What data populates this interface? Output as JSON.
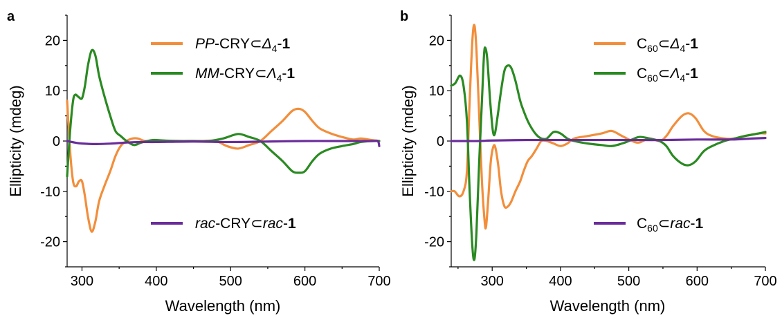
{
  "colors": {
    "orange": "#F28E3B",
    "green": "#2A8A22",
    "purple": "#6A2C9A"
  },
  "chart_data": [
    {
      "type": "line",
      "panel_label": "a",
      "xlabel": "Wavelength (nm)",
      "ylabel": "Ellipticity (mdeg)",
      "xlim": [
        280,
        700
      ],
      "ylim": [
        -25,
        25
      ],
      "xticks": [
        300,
        400,
        500,
        600,
        700
      ],
      "yticks": [
        -20,
        -10,
        0,
        10,
        20
      ],
      "grid": false,
      "legend_position": "right",
      "series": [
        {
          "name": "PP-CRY⊂Δ4-1",
          "legend": {
            "italic": "PP",
            "a": "-CRY⊂",
            "greek": "Δ",
            "sub": "4",
            "b": "-",
            "bold": "1"
          },
          "color": "#F28E3B",
          "points": [
            [
              280,
              8
            ],
            [
              284,
              -2
            ],
            [
              288,
              -8
            ],
            [
              292,
              -9
            ],
            [
              296,
              -8
            ],
            [
              300,
              -8
            ],
            [
              304,
              -11
            ],
            [
              308,
              -15
            ],
            [
              313,
              -18
            ],
            [
              318,
              -16
            ],
            [
              323,
              -12
            ],
            [
              330,
              -9
            ],
            [
              338,
              -6
            ],
            [
              345,
              -3
            ],
            [
              352,
              -1
            ],
            [
              360,
              0
            ],
            [
              368,
              0.5
            ],
            [
              375,
              0.5
            ],
            [
              385,
              0
            ],
            [
              400,
              0
            ],
            [
              420,
              0
            ],
            [
              440,
              0
            ],
            [
              460,
              0
            ],
            [
              480,
              0
            ],
            [
              495,
              -1
            ],
            [
              510,
              -1.5
            ],
            [
              525,
              -0.8
            ],
            [
              540,
              0
            ],
            [
              555,
              2
            ],
            [
              570,
              4
            ],
            [
              583,
              6
            ],
            [
              592,
              6.4
            ],
            [
              600,
              5.8
            ],
            [
              610,
              4
            ],
            [
              620,
              2.5
            ],
            [
              635,
              1.5
            ],
            [
              650,
              0.8
            ],
            [
              665,
              0.3
            ],
            [
              675,
              0.5
            ],
            [
              690,
              0.2
            ],
            [
              700,
              0
            ]
          ]
        },
        {
          "name": "MM-CRY⊂Λ4-1",
          "legend": {
            "italic": "MM",
            "a": "-CRY⊂",
            "greek": "Λ",
            "sub": "4",
            "b": "-",
            "bold": "1"
          },
          "color": "#2A8A22",
          "points": [
            [
              280,
              -7
            ],
            [
              284,
              2
            ],
            [
              288,
              8
            ],
            [
              291,
              9.2
            ],
            [
              295,
              8.8
            ],
            [
              300,
              8.5
            ],
            [
              304,
              11
            ],
            [
              308,
              15
            ],
            [
              313,
              18
            ],
            [
              318,
              17
            ],
            [
              323,
              13
            ],
            [
              330,
              9
            ],
            [
              338,
              5
            ],
            [
              345,
              2
            ],
            [
              352,
              1
            ],
            [
              360,
              0
            ],
            [
              370,
              -0.8
            ],
            [
              380,
              -0.3
            ],
            [
              395,
              0.2
            ],
            [
              410,
              0.1
            ],
            [
              430,
              0
            ],
            [
              450,
              0
            ],
            [
              470,
              0
            ],
            [
              490,
              0.5
            ],
            [
              510,
              1.4
            ],
            [
              525,
              0.8
            ],
            [
              540,
              0
            ],
            [
              555,
              -2
            ],
            [
              570,
              -4
            ],
            [
              583,
              -6
            ],
            [
              592,
              -6.3
            ],
            [
              600,
              -6
            ],
            [
              610,
              -4
            ],
            [
              620,
              -2.5
            ],
            [
              635,
              -1.5
            ],
            [
              650,
              -1
            ],
            [
              665,
              -0.6
            ],
            [
              675,
              -0.2
            ],
            [
              690,
              0
            ],
            [
              700,
              0
            ]
          ]
        },
        {
          "name": "rac-CRY⊂rac-1",
          "legend": {
            "italic": "rac",
            "a": "-CRY⊂",
            "italic2": "rac",
            "b": "-",
            "bold": "1"
          },
          "color": "#6A2C9A",
          "points": [
            [
              280,
              0
            ],
            [
              290,
              -0.3
            ],
            [
              300,
              -0.5
            ],
            [
              320,
              -0.6
            ],
            [
              340,
              -0.5
            ],
            [
              360,
              -0.3
            ],
            [
              380,
              -0.2
            ],
            [
              400,
              -0.2
            ],
            [
              450,
              -0.1
            ],
            [
              500,
              -0.2
            ],
            [
              550,
              -0.1
            ],
            [
              600,
              0
            ],
            [
              650,
              0
            ],
            [
              690,
              0
            ],
            [
              698,
              0
            ],
            [
              700,
              -1
            ]
          ]
        }
      ]
    },
    {
      "type": "line",
      "panel_label": "b",
      "xlabel": "Wavelength (nm)",
      "ylabel": "Ellipticity (mdeg)",
      "xlim": [
        240,
        700
      ],
      "ylim": [
        -25,
        25
      ],
      "xticks": [
        300,
        400,
        500,
        600,
        700
      ],
      "yticks": [
        -20,
        -10,
        0,
        10,
        20
      ],
      "grid": false,
      "legend_position": "right",
      "series": [
        {
          "name": "C60⊂Δ4-1",
          "legend": {
            "pre": "C",
            "sub1": "60",
            "a": "⊂",
            "greek": "Δ",
            "sub": "4",
            "b": "-",
            "bold": "1"
          },
          "color": "#F28E3B",
          "points": [
            [
              240,
              -10
            ],
            [
              245,
              -10
            ],
            [
              252,
              -11
            ],
            [
              258,
              -10
            ],
            [
              263,
              -6
            ],
            [
              267,
              8
            ],
            [
              271,
              20
            ],
            [
              274,
              23
            ],
            [
              277,
              18
            ],
            [
              281,
              5
            ],
            [
              285,
              -8
            ],
            [
              289,
              -16
            ],
            [
              291,
              -17
            ],
            [
              294,
              -12
            ],
            [
              298,
              -4
            ],
            [
              302,
              -1
            ],
            [
              305,
              -1.5
            ],
            [
              309,
              -5
            ],
            [
              313,
              -10
            ],
            [
              318,
              -13
            ],
            [
              323,
              -13
            ],
            [
              328,
              -12
            ],
            [
              334,
              -10
            ],
            [
              341,
              -8
            ],
            [
              346,
              -6
            ],
            [
              352,
              -4
            ],
            [
              358,
              -3
            ],
            [
              365,
              -1.5
            ],
            [
              372,
              0
            ],
            [
              380,
              0
            ],
            [
              390,
              -0.5
            ],
            [
              400,
              -1
            ],
            [
              410,
              -0.5
            ],
            [
              420,
              0.5
            ],
            [
              440,
              1
            ],
            [
              460,
              1.5
            ],
            [
              475,
              2
            ],
            [
              490,
              1
            ],
            [
              505,
              0
            ],
            [
              515,
              -0.3
            ],
            [
              530,
              0.5
            ],
            [
              545,
              0
            ],
            [
              555,
              1
            ],
            [
              565,
              3
            ],
            [
              578,
              5
            ],
            [
              588,
              5.5
            ],
            [
              598,
              4.5
            ],
            [
              610,
              2
            ],
            [
              622,
              1
            ],
            [
              640,
              0.5
            ],
            [
              655,
              0.5
            ],
            [
              670,
              1
            ],
            [
              690,
              1.5
            ],
            [
              700,
              1.5
            ]
          ]
        },
        {
          "name": "C60⊂Λ4-1",
          "legend": {
            "pre": "C",
            "sub1": "60",
            "a": "⊂",
            "greek": "Λ",
            "sub": "4",
            "b": "-",
            "bold": "1"
          },
          "color": "#2A8A22",
          "points": [
            [
              240,
              11
            ],
            [
              246,
              11.5
            ],
            [
              253,
              13
            ],
            [
              258,
              11
            ],
            [
              263,
              4
            ],
            [
              267,
              -10
            ],
            [
              271,
              -21
            ],
            [
              274,
              -23.5
            ],
            [
              277,
              -18
            ],
            [
              281,
              -4
            ],
            [
              285,
              8
            ],
            [
              288,
              17
            ],
            [
              290,
              18.5
            ],
            [
              293,
              16
            ],
            [
              297,
              8
            ],
            [
              301,
              2
            ],
            [
              304,
              1.5
            ],
            [
              308,
              5
            ],
            [
              313,
              10
            ],
            [
              318,
              14
            ],
            [
              323,
              15
            ],
            [
              328,
              14.5
            ],
            [
              334,
              12
            ],
            [
              341,
              8
            ],
            [
              346,
              6
            ],
            [
              352,
              4
            ],
            [
              358,
              2.5
            ],
            [
              365,
              1.2
            ],
            [
              372,
              0.5
            ],
            [
              380,
              0.5
            ],
            [
              390,
              1.8
            ],
            [
              400,
              1.5
            ],
            [
              410,
              0.5
            ],
            [
              420,
              0
            ],
            [
              440,
              -0.5
            ],
            [
              460,
              -0.8
            ],
            [
              475,
              -1
            ],
            [
              490,
              -0.5
            ],
            [
              500,
              0
            ],
            [
              515,
              0.8
            ],
            [
              530,
              0.5
            ],
            [
              545,
              0
            ],
            [
              555,
              -1
            ],
            [
              565,
              -3
            ],
            [
              578,
              -4.5
            ],
            [
              588,
              -4.8
            ],
            [
              598,
              -4
            ],
            [
              610,
              -2
            ],
            [
              622,
              -1
            ],
            [
              640,
              0
            ],
            [
              655,
              0.5
            ],
            [
              670,
              1
            ],
            [
              690,
              1.5
            ],
            [
              700,
              1.8
            ]
          ]
        },
        {
          "name": "C60⊂rac-1",
          "legend": {
            "pre": "C",
            "sub1": "60",
            "a": "⊂",
            "italic2": "rac",
            "b": "-",
            "bold": "1"
          },
          "color": "#6A2C9A",
          "points": [
            [
              240,
              0
            ],
            [
              260,
              0
            ],
            [
              280,
              0
            ],
            [
              300,
              0.1
            ],
            [
              350,
              0.2
            ],
            [
              400,
              0.2
            ],
            [
              450,
              0.2
            ],
            [
              500,
              0.2
            ],
            [
              550,
              0.2
            ],
            [
              600,
              0.3
            ],
            [
              650,
              0.3
            ],
            [
              680,
              0.5
            ],
            [
              700,
              0.6
            ]
          ]
        }
      ]
    }
  ]
}
